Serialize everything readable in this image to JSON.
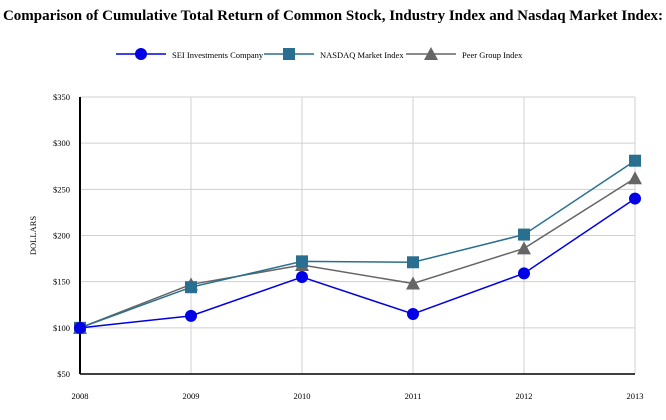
{
  "header": {
    "title": "Comparison of Cumulative Total Return of Common Stock, Industry Index and Nasdaq Market Index:"
  },
  "chart_data": {
    "type": "line",
    "title": "Comparison of Cumulative Total Return of Common Stock, Industry Index and Nasdaq Market Index:",
    "xlabel": "",
    "ylabel": "DOLLARS",
    "x": [
      "2008",
      "2009",
      "2010",
      "2011",
      "2012",
      "2013"
    ],
    "ylim": [
      50,
      350
    ],
    "yticks": [
      50,
      100,
      150,
      200,
      250,
      300,
      350
    ],
    "ytick_labels": [
      "$50",
      "$100",
      "$150",
      "$200",
      "$250",
      "$300",
      "$350"
    ],
    "grid": true,
    "legend_position": "top",
    "series": [
      {
        "name": "SEI Investments Company",
        "values": [
          100,
          113,
          155,
          115,
          159,
          240
        ],
        "color": "#0000e6",
        "marker": "circle"
      },
      {
        "name": "NASDAQ Market Index",
        "values": [
          100,
          144,
          172,
          171,
          201,
          281
        ],
        "color": "#2a6f8f",
        "marker": "square"
      },
      {
        "name": "Peer Group Index",
        "values": [
          100,
          147,
          168,
          148,
          186,
          262
        ],
        "color": "#666666",
        "marker": "triangle"
      }
    ]
  }
}
